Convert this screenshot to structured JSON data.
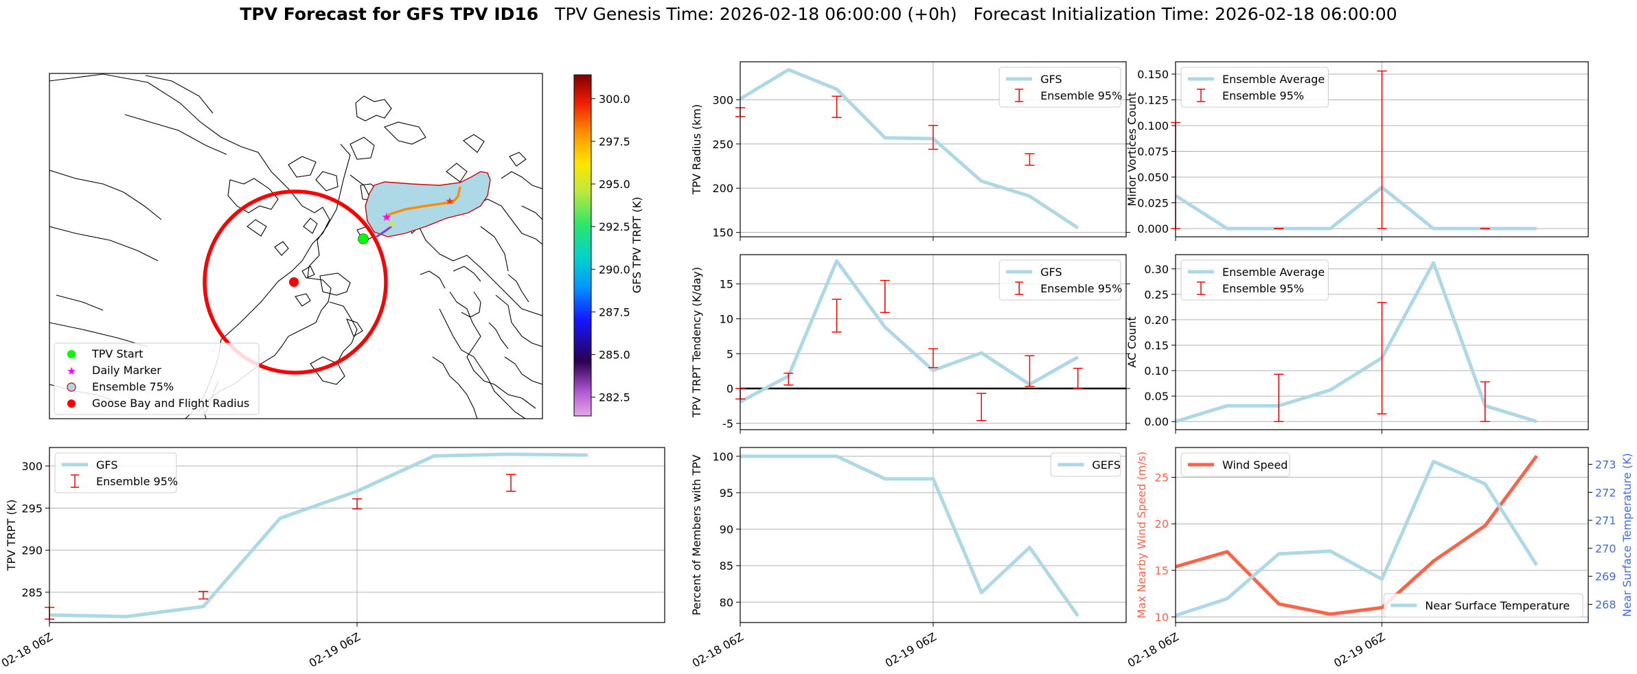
{
  "header": {
    "title_bold": "TPV Forecast for GFS TPV ID16",
    "title_genesis": "TPV Genesis Time: 2026-02-18 06:00:00 (+0h)",
    "title_init": "Forecast Initialization Time: 2026-02-18 06:00:00"
  },
  "colors": {
    "gfs": "#add8e6",
    "ensemble": "#ff0000",
    "wind": "#ff6347",
    "temp_axis": "#4169e1",
    "track": "#ff8c00"
  },
  "map": {
    "legend": [
      "TPV Start",
      "Daily Marker",
      "Ensemble 75%",
      "Goose Bay and Flight Radius"
    ],
    "colorbar_label": "GFS TPV TRPT (K)",
    "colorbar_ticks": [
      "300.0",
      "297.5",
      "295.0",
      "292.5",
      "290.0",
      "287.5",
      "285.0",
      "282.5"
    ],
    "colorbar_range": [
      281.4,
      301.4
    ]
  },
  "chart_data": [
    {
      "id": "radius",
      "type": "line",
      "ylabel": "TPV Radius (km)",
      "x": [
        "02-18 06Z",
        "02-18 12Z",
        "02-18 18Z",
        "02-19 00Z",
        "02-19 06Z",
        "02-19 12Z",
        "02-19 18Z",
        "02-20 00Z",
        "02-20 06Z"
      ],
      "ylim": [
        145,
        343
      ],
      "yticks": [
        150,
        200,
        250,
        300
      ],
      "series": [
        {
          "name": "GFS",
          "values": [
            301,
            334,
            312,
            257,
            256,
            208,
            191,
            155,
            null
          ]
        }
      ],
      "errorbars": {
        "name": "Ensemble 95%",
        "x": [
          "02-18 06Z",
          "02-18 18Z",
          "02-19 06Z",
          "02-19 18Z"
        ],
        "low": [
          281,
          280,
          244,
          226
        ],
        "high": [
          291,
          304,
          271,
          239
        ]
      },
      "legend": "upper right"
    },
    {
      "id": "tendency",
      "type": "line",
      "ylabel": "TPV TRPT Tendency (K/day)",
      "x": [
        "02-18 06Z",
        "02-18 12Z",
        "02-18 18Z",
        "02-19 00Z",
        "02-19 06Z",
        "02-19 12Z",
        "02-19 18Z",
        "02-20 00Z",
        "02-20 06Z"
      ],
      "ylim": [
        -5.9,
        19.2
      ],
      "yticks": [
        -5,
        0,
        5,
        10,
        15
      ],
      "zero_line": true,
      "series": [
        {
          "name": "GFS",
          "values": [
            -1.9,
            1.8,
            18.3,
            8.8,
            2.6,
            5.1,
            0.6,
            4.5,
            null
          ]
        }
      ],
      "errorbars": {
        "name": "Ensemble 95%",
        "x": [
          "02-18 06Z",
          "02-18 12Z",
          "02-18 18Z",
          "02-19 00Z",
          "02-19 06Z",
          "02-19 12Z",
          "02-19 18Z",
          "02-20 00Z"
        ],
        "low": [
          -1.5,
          0.5,
          8.1,
          10.9,
          3.0,
          -4.6,
          0.3,
          0.0
        ],
        "high": [
          0.0,
          2.2,
          12.8,
          15.5,
          5.7,
          -0.7,
          4.7,
          2.9
        ]
      },
      "legend": "upper right"
    },
    {
      "id": "trpt",
      "type": "line",
      "ylabel": "TPV TRPT (K)",
      "x": [
        "02-18 06Z",
        "02-18 12Z",
        "02-18 18Z",
        "02-19 00Z",
        "02-19 06Z",
        "02-19 12Z",
        "02-19 18Z",
        "02-20 00Z",
        "02-20 06Z"
      ],
      "xticks": [
        "02-18 06Z",
        "02-19 06Z"
      ],
      "ylim": [
        281.4,
        302.2
      ],
      "yticks": [
        285,
        290,
        295,
        300
      ],
      "series": [
        {
          "name": "GFS",
          "values": [
            282.3,
            282.1,
            283.3,
            293.8,
            297.0,
            301.2,
            301.4,
            301.3,
            null
          ]
        }
      ],
      "errorbars": {
        "name": "Ensemble 95%",
        "x": [
          "02-18 06Z",
          "02-18 18Z",
          "02-19 06Z",
          "02-19 18Z"
        ],
        "low": [
          281.8,
          284.2,
          294.9,
          297.0
        ],
        "high": [
          283.2,
          285.1,
          296.1,
          299.0
        ]
      },
      "legend": "upper left"
    },
    {
      "id": "minor",
      "type": "line",
      "ylabel": "Minor Vortices Count",
      "x": [
        "02-18 06Z",
        "02-18 12Z",
        "02-18 18Z",
        "02-19 00Z",
        "02-19 06Z",
        "02-19 12Z",
        "02-19 18Z",
        "02-20 00Z",
        "02-20 06Z"
      ],
      "ylim": [
        -0.008,
        0.162
      ],
      "yticks": [
        0.0,
        0.025,
        0.05,
        0.075,
        0.1,
        0.125,
        0.15
      ],
      "series": [
        {
          "name": "Ensemble Average",
          "values": [
            0.032,
            0.0,
            0.0,
            0.0,
            0.04,
            0.0,
            0.0,
            0.0,
            null
          ]
        }
      ],
      "errorbars": {
        "name": "Ensemble 95%",
        "x": [
          "02-18 06Z",
          "02-18 18Z",
          "02-19 06Z",
          "02-19 18Z"
        ],
        "low": [
          0.0,
          0.0,
          0.0,
          0.0
        ],
        "high": [
          0.103,
          0.0,
          0.153,
          0.0
        ]
      },
      "legend": "upper left"
    },
    {
      "id": "ac",
      "type": "line",
      "ylabel": "AC Count",
      "x": [
        "02-18 06Z",
        "02-18 12Z",
        "02-18 18Z",
        "02-19 00Z",
        "02-19 06Z",
        "02-19 12Z",
        "02-19 18Z",
        "02-20 00Z",
        "02-20 06Z"
      ],
      "ylim": [
        -0.016,
        0.328
      ],
      "yticks": [
        0.0,
        0.05,
        0.1,
        0.15,
        0.2,
        0.25,
        0.3
      ],
      "series": [
        {
          "name": "Ensemble Average",
          "values": [
            0.0,
            0.031,
            0.031,
            0.062,
            0.125,
            0.312,
            0.031,
            0.0,
            null
          ]
        }
      ],
      "errorbars": {
        "name": "Ensemble 95%",
        "x": [
          "02-18 18Z",
          "02-19 06Z",
          "02-19 18Z"
        ],
        "low": [
          0.0,
          0.015,
          0.0
        ],
        "high": [
          0.093,
          0.234,
          0.078
        ]
      },
      "legend": "upper left"
    },
    {
      "id": "members",
      "type": "line",
      "ylabel": "Percent of Members with TPV",
      "x": [
        "02-18 06Z",
        "02-18 12Z",
        "02-18 18Z",
        "02-19 00Z",
        "02-19 06Z",
        "02-19 12Z",
        "02-19 18Z",
        "02-20 00Z",
        "02-20 06Z"
      ],
      "xticks": [
        "02-18 06Z",
        "02-19 06Z"
      ],
      "ylim": [
        77.2,
        101.2
      ],
      "yticks": [
        80,
        85,
        90,
        95,
        100
      ],
      "series": [
        {
          "name": "GEFS",
          "values": [
            100,
            100,
            100,
            96.9,
            96.9,
            81.3,
            87.5,
            78.1,
            null
          ]
        }
      ],
      "legend": "upper right"
    },
    {
      "id": "wind",
      "type": "line",
      "ylabel": "Max Nearby Wind Speed (m/s)",
      "y2label": "Near Surface Temperature (K)",
      "x": [
        "02-18 06Z",
        "02-18 12Z",
        "02-18 18Z",
        "02-19 00Z",
        "02-19 06Z",
        "02-19 12Z",
        "02-19 18Z",
        "02-20 00Z",
        "02-20 06Z"
      ],
      "xticks": [
        "02-18 06Z",
        "02-19 06Z"
      ],
      "ylim": [
        9.4,
        28.2
      ],
      "yticks": [
        10,
        15,
        20,
        25
      ],
      "y2lim": [
        267.35,
        273.6
      ],
      "y2ticks": [
        268,
        269,
        270,
        271,
        272,
        273
      ],
      "series": [
        {
          "name": "Wind Speed",
          "axis": "left",
          "values": [
            15.4,
            17.0,
            11.4,
            10.3,
            11.0,
            16.0,
            19.8,
            27.3,
            null
          ]
        },
        {
          "name": "Near Surface Temperature",
          "axis": "right",
          "values": [
            267.6,
            268.2,
            269.8,
            269.9,
            268.9,
            273.1,
            272.3,
            269.4,
            null
          ]
        }
      ],
      "legend_left": "upper left",
      "legend_right": "lower right"
    }
  ]
}
